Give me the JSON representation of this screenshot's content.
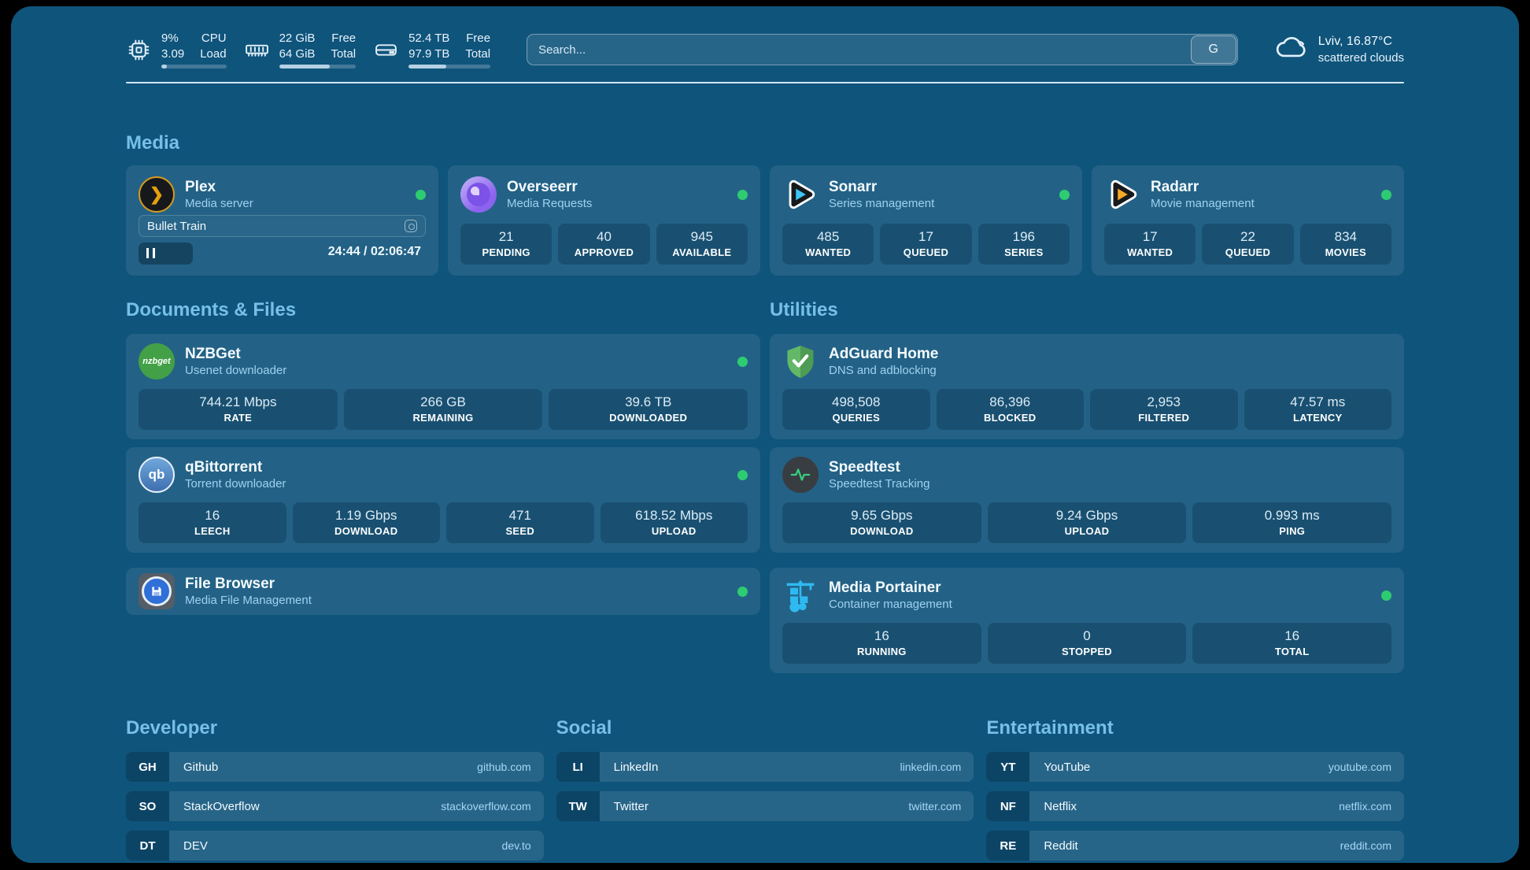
{
  "colors": {
    "status_green": "#2ecc71",
    "accent": "#76c0e8",
    "background": "#0f547b"
  },
  "header": {
    "stats": [
      {
        "icon": "cpu-icon",
        "value_top": "9%",
        "value_bottom": "3.09",
        "label_top": "CPU",
        "label_bottom": "Load",
        "progress_pct": 9
      },
      {
        "icon": "ram-icon",
        "value_top": "22 GiB",
        "value_bottom": "64 GiB",
        "label_top": "Free",
        "label_bottom": "Total",
        "progress_pct": 66
      },
      {
        "icon": "disk-icon",
        "value_top": "52.4 TB",
        "value_bottom": "97.9 TB",
        "label_top": "Free",
        "label_bottom": "Total",
        "progress_pct": 46
      }
    ],
    "search": {
      "placeholder": "Search...",
      "button_label": "G"
    },
    "weather": {
      "location": "Lviv, 16.87°C",
      "condition": "scattered clouds"
    }
  },
  "media": {
    "title": "Media",
    "plex": {
      "name": "Plex",
      "subtitle": "Media server",
      "now_playing": "Bullet Train",
      "time": "24:44 / 02:06:47",
      "progress_pct": 19
    },
    "overseerr": {
      "name": "Overseerr",
      "subtitle": "Media Requests",
      "stats": [
        {
          "value": "21",
          "label": "PENDING"
        },
        {
          "value": "40",
          "label": "APPROVED"
        },
        {
          "value": "945",
          "label": "AVAILABLE"
        }
      ]
    },
    "sonarr": {
      "name": "Sonarr",
      "subtitle": "Series management",
      "stats": [
        {
          "value": "485",
          "label": "WANTED"
        },
        {
          "value": "17",
          "label": "QUEUED"
        },
        {
          "value": "196",
          "label": "SERIES"
        }
      ]
    },
    "radarr": {
      "name": "Radarr",
      "subtitle": "Movie management",
      "stats": [
        {
          "value": "17",
          "label": "WANTED"
        },
        {
          "value": "22",
          "label": "QUEUED"
        },
        {
          "value": "834",
          "label": "MOVIES"
        }
      ]
    }
  },
  "documents": {
    "title": "Documents & Files",
    "nzbget": {
      "name": "NZBGet",
      "subtitle": "Usenet downloader",
      "icon_text": "nzbget",
      "stats": [
        {
          "value": "744.21 Mbps",
          "label": "RATE"
        },
        {
          "value": "266 GB",
          "label": "REMAINING"
        },
        {
          "value": "39.6 TB",
          "label": "DOWNLOADED"
        }
      ]
    },
    "qbittorrent": {
      "name": "qBittorrent",
      "subtitle": "Torrent downloader",
      "icon_text": "qb",
      "stats": [
        {
          "value": "16",
          "label": "LEECH"
        },
        {
          "value": "1.19 Gbps",
          "label": "DOWNLOAD"
        },
        {
          "value": "471",
          "label": "SEED"
        },
        {
          "value": "618.52 Mbps",
          "label": "UPLOAD"
        }
      ]
    },
    "filebrowser": {
      "name": "File Browser",
      "subtitle": "Media File Management"
    }
  },
  "utilities": {
    "title": "Utilities",
    "adguard": {
      "name": "AdGuard Home",
      "subtitle": "DNS and adblocking",
      "stats": [
        {
          "value": "498,508",
          "label": "QUERIES"
        },
        {
          "value": "86,396",
          "label": "BLOCKED"
        },
        {
          "value": "2,953",
          "label": "FILTERED"
        },
        {
          "value": "47.57 ms",
          "label": "LATENCY"
        }
      ]
    },
    "speedtest": {
      "name": "Speedtest",
      "subtitle": "Speedtest Tracking",
      "stats": [
        {
          "value": "9.65 Gbps",
          "label": "DOWNLOAD"
        },
        {
          "value": "9.24 Gbps",
          "label": "UPLOAD"
        },
        {
          "value": "0.993 ms",
          "label": "PING"
        }
      ]
    },
    "portainer": {
      "name": "Media Portainer",
      "subtitle": "Container management",
      "stats": [
        {
          "value": "16",
          "label": "RUNNING"
        },
        {
          "value": "0",
          "label": "STOPPED"
        },
        {
          "value": "16",
          "label": "TOTAL"
        }
      ]
    }
  },
  "bookmarks": {
    "developer": {
      "title": "Developer",
      "items": [
        {
          "abbr": "GH",
          "name": "Github",
          "url": "github.com"
        },
        {
          "abbr": "SO",
          "name": "StackOverflow",
          "url": "stackoverflow.com"
        },
        {
          "abbr": "DT",
          "name": "DEV",
          "url": "dev.to"
        }
      ]
    },
    "social": {
      "title": "Social",
      "items": [
        {
          "abbr": "LI",
          "name": "LinkedIn",
          "url": "linkedin.com"
        },
        {
          "abbr": "TW",
          "name": "Twitter",
          "url": "twitter.com"
        }
      ]
    },
    "entertainment": {
      "title": "Entertainment",
      "items": [
        {
          "abbr": "YT",
          "name": "YouTube",
          "url": "youtube.com"
        },
        {
          "abbr": "NF",
          "name": "Netflix",
          "url": "netflix.com"
        },
        {
          "abbr": "RE",
          "name": "Reddit",
          "url": "reddit.com"
        }
      ]
    }
  }
}
